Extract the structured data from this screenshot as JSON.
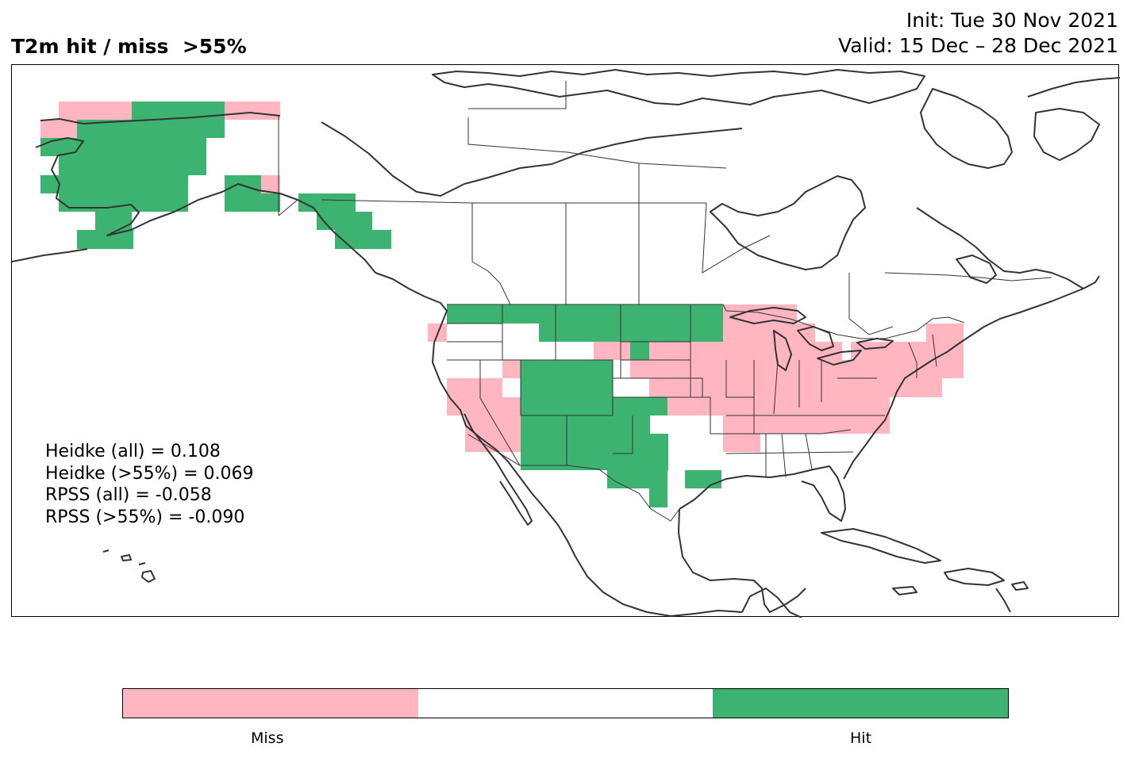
{
  "title": "T2m hit / miss  >55%",
  "init": "Init: Tue 30 Nov 2021",
  "valid": "Valid: 15 Dec – 28 Dec 2021",
  "stats": [
    "Heidke (all) = 0.108",
    "Heidke (>55%) = 0.069",
    "RPSS (all) = -0.058",
    "RPSS (>55%) = -0.090"
  ],
  "legend": {
    "miss_label": "Miss",
    "hit_label": "Hit",
    "miss_color": "#FFB6C1",
    "neutral_color": "#FFFFFF",
    "hit_color": "#3CB371"
  },
  "map": {
    "projection": "plate-carree",
    "region": "North America",
    "variable": "2m temperature",
    "threshold": ">55%",
    "category_colors": {
      "hit": "#3CB371",
      "miss": "#FFB6C1"
    },
    "line_color": "#333333"
  }
}
